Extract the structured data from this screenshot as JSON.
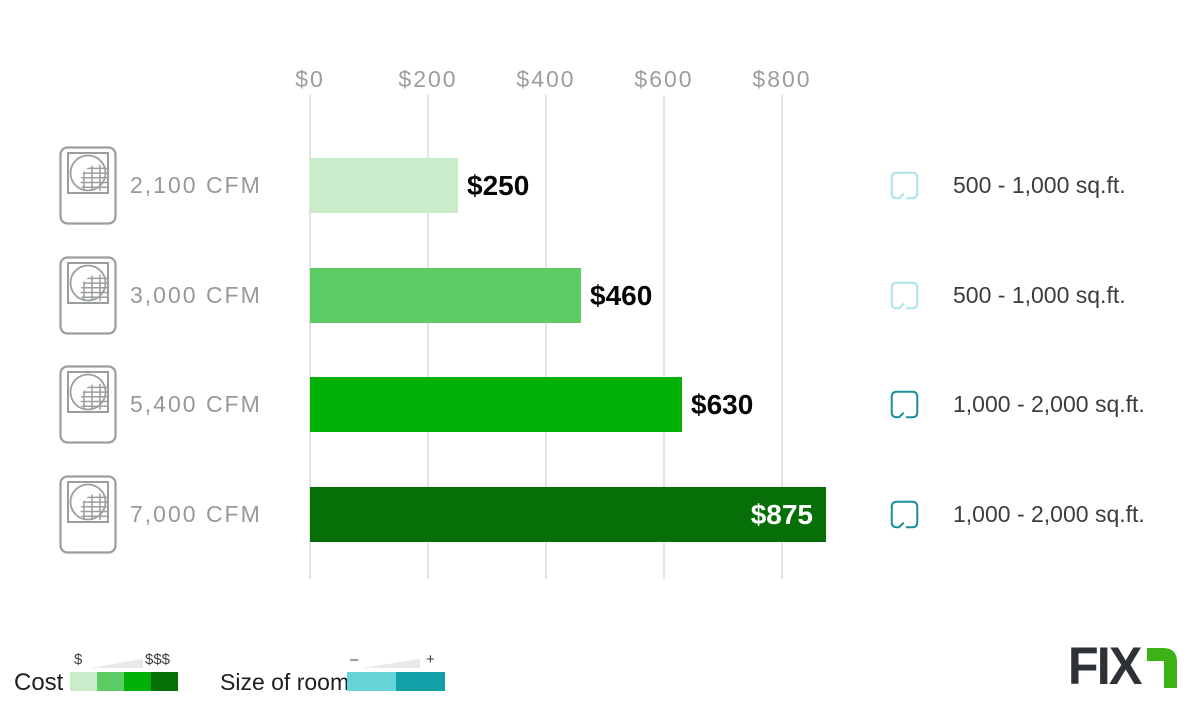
{
  "chart_data": {
    "type": "bar",
    "orientation": "horizontal",
    "categories": [
      "2,100 CFM",
      "3,000 CFM",
      "5,400 CFM",
      "7,000 CFM"
    ],
    "values": [
      250,
      460,
      630,
      875
    ],
    "value_labels": [
      "$250",
      "$460",
      "$630",
      "$875"
    ],
    "bar_colors": [
      "#c9ecca",
      "#5ecc65",
      "#00b107",
      "#066f08"
    ],
    "room_sizes": [
      "500 - 1,000 sq.ft.",
      "500 - 1,000 sq.ft.",
      "1,000 - 2,000 sq.ft.",
      "1,000 - 2,000 sq.ft."
    ],
    "x_ticks": [
      "$0",
      "$200",
      "$400",
      "$600",
      "$800"
    ],
    "x_tick_values": [
      0,
      200,
      400,
      600,
      800
    ],
    "xlim": [
      0,
      900
    ],
    "grid": true,
    "legend_position": "bottom-left"
  },
  "axis": {
    "ticks": [
      "$0",
      "$200",
      "$400",
      "$600",
      "$800"
    ]
  },
  "rows": [
    {
      "cfm_label": "2,100 CFM",
      "value": 250,
      "value_label": "$250",
      "bar_color": "#c9ecca",
      "room_label": "500 - 1,000 sq.ft.",
      "room_icon_color": "#abe3e8",
      "value_label_position": "outside"
    },
    {
      "cfm_label": "3,000 CFM",
      "value": 460,
      "value_label": "$460",
      "bar_color": "#5ecc65",
      "room_label": "500 - 1,000 sq.ft.",
      "room_icon_color": "#abe3e8",
      "value_label_position": "outside"
    },
    {
      "cfm_label": "5,400 CFM",
      "value": 630,
      "value_label": "$630",
      "bar_color": "#00b107",
      "room_label": "1,000 - 2,000 sq.ft.",
      "room_icon_color": "#1b8f9c",
      "value_label_position": "outside"
    },
    {
      "cfm_label": "7,000 CFM",
      "value": 875,
      "value_label": "$875",
      "bar_color": "#066f08",
      "room_label": "1,000 - 2,000 sq.ft.",
      "room_icon_color": "#1b8f9c",
      "value_label_position": "inside"
    }
  ],
  "legend": {
    "cost_label": "Cost",
    "cost_scale_min": "$",
    "cost_scale_max": "$$$",
    "cost_colors": [
      "#c9ecca",
      "#5ecc65",
      "#00b107",
      "#066f08"
    ],
    "room_label": "Size of room",
    "room_scale_min": "–",
    "room_scale_max": "+",
    "room_colors": [
      "#66d4d9",
      "#12a0a7"
    ]
  },
  "logo": {
    "text": "FIX",
    "accent_color": "#3cb216"
  }
}
